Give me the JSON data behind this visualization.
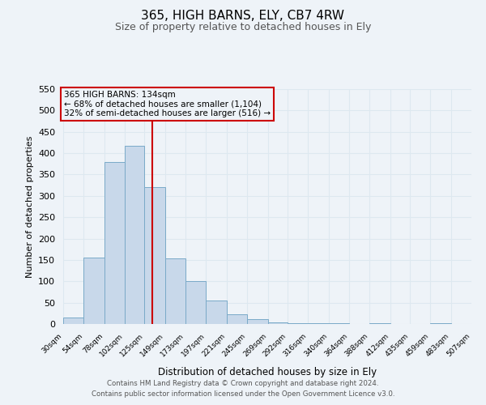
{
  "title": "365, HIGH BARNS, ELY, CB7 4RW",
  "subtitle": "Size of property relative to detached houses in Ely",
  "xlabel": "Distribution of detached houses by size in Ely",
  "ylabel": "Number of detached properties",
  "footnote1": "Contains HM Land Registry data © Crown copyright and database right 2024.",
  "footnote2": "Contains public sector information licensed under the Open Government Licence v3.0.",
  "bar_edges": [
    30,
    54,
    78,
    102,
    125,
    149,
    173,
    197,
    221,
    245,
    269,
    292,
    316,
    340,
    364,
    388,
    412,
    435,
    459,
    483,
    507
  ],
  "bar_heights": [
    15,
    155,
    380,
    418,
    320,
    153,
    100,
    55,
    22,
    12,
    3,
    2,
    1,
    1,
    0,
    1,
    0,
    0,
    1,
    0
  ],
  "bar_color": "#c8d8ea",
  "bar_edge_color": "#7aaac8",
  "grid_color": "#dde8f0",
  "background_color": "#eef3f8",
  "property_line_x": 134,
  "property_line_color": "#cc0000",
  "ylim": [
    0,
    550
  ],
  "yticks": [
    0,
    50,
    100,
    150,
    200,
    250,
    300,
    350,
    400,
    450,
    500,
    550
  ],
  "annotation_title": "365 HIGH BARNS: 134sqm",
  "annotation_line1": "← 68% of detached houses are smaller (1,104)",
  "annotation_line2": "32% of semi-detached houses are larger (516) →",
  "annotation_box_color": "#cc0000",
  "xtick_labels": [
    "30sqm",
    "54sqm",
    "78sqm",
    "102sqm",
    "125sqm",
    "149sqm",
    "173sqm",
    "197sqm",
    "221sqm",
    "245sqm",
    "269sqm",
    "292sqm",
    "316sqm",
    "340sqm",
    "364sqm",
    "388sqm",
    "412sqm",
    "435sqm",
    "459sqm",
    "483sqm",
    "507sqm"
  ]
}
